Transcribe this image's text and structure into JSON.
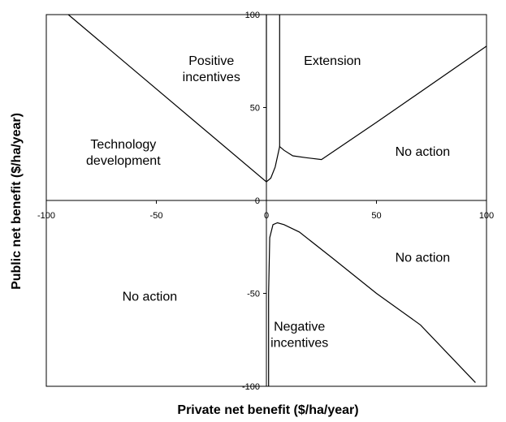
{
  "chart_data": {
    "type": "line",
    "title": "",
    "xlabel": "Private net benefit ($/ha/year)",
    "ylabel": "Public net benefit ($/ha/year)",
    "xlim": [
      -100,
      100
    ],
    "ylim": [
      -100,
      100
    ],
    "x_ticks": [
      -100,
      -50,
      0,
      50,
      100
    ],
    "y_ticks": [
      100,
      50,
      0,
      -50,
      -100
    ],
    "grid": false,
    "series": [
      {
        "points": [
          [
            -90,
            100
          ],
          [
            0,
            10
          ],
          [
            2,
            12
          ],
          [
            4,
            18
          ],
          [
            6,
            29
          ],
          [
            8,
            27
          ],
          [
            12,
            24
          ],
          [
            18,
            23
          ],
          [
            25,
            22
          ],
          [
            30,
            26
          ],
          [
            50,
            42
          ],
          [
            100,
            83
          ]
        ]
      },
      {
        "points": [
          [
            6,
            100
          ],
          [
            6,
            29
          ]
        ]
      },
      {
        "points": [
          [
            0,
            100
          ],
          [
            0,
            10
          ]
        ]
      },
      {
        "points": [
          [
            1,
            -100
          ],
          [
            1,
            -50
          ],
          [
            1.5,
            -20
          ],
          [
            3,
            -13
          ],
          [
            5,
            -12
          ],
          [
            8,
            -13
          ],
          [
            15,
            -17
          ],
          [
            30,
            -31
          ],
          [
            50,
            -50
          ],
          [
            70,
            -67
          ],
          [
            95,
            -98
          ]
        ]
      }
    ],
    "regions": [
      {
        "label": "Positive\nincentives",
        "x": -25,
        "y": 73
      },
      {
        "label": "Extension",
        "x": 30,
        "y": 73
      },
      {
        "label": "Technology\ndevelopment",
        "x": -65,
        "y": 28
      },
      {
        "label": "No action",
        "x": 71,
        "y": 24
      },
      {
        "label": "No action",
        "x": 71,
        "y": -33
      },
      {
        "label": "No action",
        "x": -53,
        "y": -54
      },
      {
        "label": "Negative\nincentives",
        "x": 15,
        "y": -70
      }
    ]
  }
}
